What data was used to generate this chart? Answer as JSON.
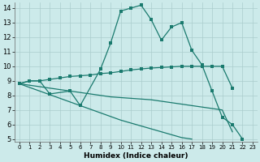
{
  "bg_color": "#cceaea",
  "line_color": "#1a7a6e",
  "grid_color": "#aacccc",
  "xlabel": "Humidex (Indice chaleur)",
  "xlim": [
    -0.5,
    23.5
  ],
  "ylim": [
    4.8,
    14.4
  ],
  "yticks": [
    5,
    6,
    7,
    8,
    9,
    10,
    11,
    12,
    13,
    14
  ],
  "xticks": [
    0,
    1,
    2,
    3,
    4,
    5,
    6,
    7,
    8,
    9,
    10,
    11,
    12,
    13,
    14,
    15,
    16,
    17,
    18,
    19,
    20,
    21,
    22,
    23
  ],
  "line1_x": [
    0,
    1,
    2,
    3,
    5,
    6,
    8,
    9,
    10,
    11,
    12,
    13,
    14,
    15,
    16,
    17,
    18,
    19,
    20,
    21,
    22,
    23
  ],
  "line1_y": [
    8.8,
    9.0,
    9.0,
    8.1,
    8.3,
    7.3,
    9.8,
    11.6,
    13.8,
    14.0,
    14.2,
    13.2,
    11.8,
    12.7,
    13.0,
    11.1,
    10.1,
    8.3,
    6.5,
    6.0,
    5.0,
    null
  ],
  "line2_x": [
    0,
    1,
    2,
    3,
    4,
    5,
    6,
    7,
    8,
    9,
    10,
    11,
    12,
    13,
    14,
    15,
    16,
    17,
    18,
    19,
    20,
    21
  ],
  "line2_y": [
    8.8,
    9.0,
    9.0,
    9.1,
    9.2,
    9.3,
    9.35,
    9.4,
    9.5,
    9.55,
    9.65,
    9.75,
    9.82,
    9.88,
    9.92,
    9.96,
    10.0,
    10.0,
    10.0,
    10.0,
    10.0,
    8.5
  ],
  "line3_x": [
    0,
    1,
    2,
    3,
    4,
    5,
    6,
    7,
    8,
    9,
    10,
    11,
    12,
    13,
    14,
    15,
    16,
    17,
    18,
    19,
    20,
    21
  ],
  "line3_y": [
    8.8,
    8.7,
    8.6,
    8.5,
    8.4,
    8.3,
    8.2,
    8.1,
    8.0,
    7.9,
    7.85,
    7.8,
    7.75,
    7.7,
    7.6,
    7.5,
    7.4,
    7.3,
    7.2,
    7.1,
    7.0,
    5.5
  ],
  "line4_x": [
    0,
    1,
    2,
    3,
    4,
    5,
    6,
    7,
    8,
    9,
    10,
    11,
    12,
    13,
    14,
    15,
    16,
    17
  ],
  "line4_y": [
    8.8,
    8.55,
    8.3,
    8.05,
    7.8,
    7.55,
    7.3,
    7.05,
    6.8,
    6.55,
    6.3,
    6.1,
    5.9,
    5.7,
    5.5,
    5.3,
    5.1,
    5.0
  ]
}
